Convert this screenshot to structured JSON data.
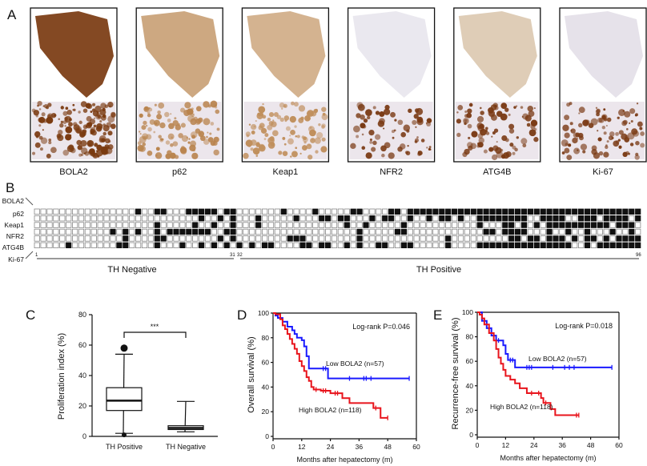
{
  "panel_labels": {
    "a": "A",
    "b": "B",
    "c": "C",
    "d": "D",
    "e": "E"
  },
  "panel_a": {
    "stains": [
      {
        "label": "BOLA2",
        "color": "#7a3a10",
        "density": 0.95
      },
      {
        "label": "p62",
        "color": "#b9844e",
        "density": 0.6
      },
      {
        "label": "Keap1",
        "color": "#c08f5c",
        "density": 0.55
      },
      {
        "label": "NFR2",
        "color": "#d6d2df",
        "density": 0.25
      },
      {
        "label": "ATG4B",
        "color": "#c9aa84",
        "density": 0.4
      },
      {
        "label": "Ki-67",
        "color": "#d7d0dd",
        "density": 0.45
      }
    ]
  },
  "panel_b": {
    "markers": [
      "BOLA2",
      "p62",
      "Keap1",
      "NFR2",
      "ATG4B",
      "Ki-67"
    ],
    "n_cases": 96,
    "rows_positive_cases": [
      [
        17,
        20,
        21,
        25,
        26,
        27,
        28,
        29,
        31,
        32,
        40,
        45,
        51,
        52,
        57,
        58,
        60,
        61,
        62,
        63,
        64,
        65,
        66,
        67,
        68,
        69,
        70,
        71,
        72,
        73,
        74,
        75,
        76,
        77,
        78,
        79,
        80,
        81,
        82,
        83,
        84,
        85,
        86,
        87,
        88,
        89,
        90,
        91,
        92,
        93,
        94,
        95,
        96
      ],
      [
        27,
        30,
        32,
        36,
        42,
        46,
        47,
        49,
        50,
        54,
        56,
        57,
        60,
        63,
        65,
        66,
        68,
        71,
        72,
        73,
        74,
        75,
        76,
        77,
        78,
        81,
        82,
        83,
        84,
        87,
        88,
        89,
        91,
        92,
        93,
        94,
        96
      ],
      [
        20,
        26,
        29,
        32,
        36,
        50,
        53,
        59,
        71,
        75,
        76,
        78,
        80,
        82,
        83,
        84,
        85,
        86,
        87,
        88,
        89,
        90,
        91,
        93,
        94,
        95
      ],
      [
        13,
        15,
        17,
        20,
        22,
        23,
        24,
        25,
        26,
        27,
        28,
        31,
        32,
        52,
        58,
        59,
        72,
        73,
        75,
        76,
        77,
        78,
        82,
        85,
        88,
        92,
        95
      ],
      [
        15,
        20,
        21,
        30,
        32,
        41,
        42,
        43,
        52,
        66,
        76,
        77,
        79,
        80,
        82,
        83,
        84,
        86,
        88,
        89,
        91,
        93,
        94,
        95,
        96
      ],
      [
        6,
        14,
        15,
        20,
        24,
        27,
        29,
        31,
        33,
        35,
        37,
        38,
        43,
        44,
        46,
        47,
        50,
        52,
        55,
        56,
        59,
        60,
        66,
        71,
        72,
        73,
        74,
        75,
        76,
        77,
        78,
        79,
        80,
        81,
        82,
        83,
        84,
        85,
        88,
        90,
        91,
        92,
        93,
        94,
        95,
        96
      ]
    ],
    "tick_labels": {
      "first": "1",
      "neg_end": "31",
      "pos_start": "32",
      "last": "96"
    },
    "group_labels": {
      "negative": "TH Negative",
      "positive": "TH Positive"
    }
  },
  "chart_data": [
    {
      "type": "box",
      "ylabel": "Proliferation index (%)",
      "ylim": [
        0,
        80
      ],
      "yticks": [
        "0",
        "20",
        "40",
        "60",
        "80"
      ],
      "categories": [
        "TH Positive",
        "TH Negative"
      ],
      "boxes": [
        {
          "whisker_low": 2,
          "q1": 17,
          "median": 23.5,
          "q3": 32,
          "whisker_high": 54,
          "outliers": [
            58,
            1
          ]
        },
        {
          "whisker_low": 3,
          "q1": 4.5,
          "median": 5.5,
          "q3": 7,
          "whisker_high": 23,
          "outliers": []
        }
      ],
      "significance": "***"
    },
    {
      "type": "line",
      "subtype": "kaplan-meier",
      "xlabel": "Months after hepatectomy (m)",
      "ylabel": "Overall survival (%)",
      "xlim": [
        0,
        60
      ],
      "ylim": [
        0,
        100
      ],
      "xticks": [
        "0",
        "12",
        "24",
        "36",
        "48",
        "60"
      ],
      "yticks": [
        "0",
        "20",
        "40",
        "60",
        "80",
        "100"
      ],
      "annotation": "Log-rank P=0.046",
      "series": [
        {
          "name": "Low BOLA2 (n=57)",
          "color": "#1a1aff",
          "steps": [
            [
              0,
              100
            ],
            [
              1,
              98
            ],
            [
              2,
              96
            ],
            [
              4,
              93
            ],
            [
              6,
              89
            ],
            [
              8,
              86
            ],
            [
              9,
              83
            ],
            [
              10,
              80
            ],
            [
              12,
              78
            ],
            [
              13,
              73
            ],
            [
              14,
              65
            ],
            [
              15,
              55
            ],
            [
              23,
              55
            ],
            [
              23,
              47
            ],
            [
              57,
              47
            ]
          ],
          "censored": [
            21,
            22,
            32,
            38,
            39,
            41,
            57
          ]
        },
        {
          "name": "High BOLA2 (n=118)",
          "color": "#e8141c",
          "steps": [
            [
              0,
              100
            ],
            [
              1,
              99
            ],
            [
              3,
              95
            ],
            [
              4,
              90
            ],
            [
              5,
              87
            ],
            [
              6,
              83
            ],
            [
              7,
              79
            ],
            [
              8,
              75
            ],
            [
              9,
              71
            ],
            [
              10,
              67
            ],
            [
              11,
              61
            ],
            [
              12,
              57
            ],
            [
              13,
              53
            ],
            [
              14,
              48
            ],
            [
              15,
              45
            ],
            [
              16,
              40
            ],
            [
              17,
              38
            ],
            [
              20,
              37
            ],
            [
              24,
              35
            ],
            [
              29,
              31
            ],
            [
              32,
              27
            ],
            [
              42,
              23
            ],
            [
              45,
              15
            ],
            [
              48,
              15
            ]
          ],
          "censored": [
            18,
            21,
            22,
            26,
            27,
            43,
            48
          ]
        }
      ]
    },
    {
      "type": "line",
      "subtype": "kaplan-meier",
      "xlabel": "Months after hepatectomy (m)",
      "ylabel": "Recurrence-free survival (%)",
      "xlim": [
        0,
        60
      ],
      "ylim": [
        0,
        100
      ],
      "xticks": [
        "0",
        "12",
        "24",
        "36",
        "48",
        "60"
      ],
      "yticks": [
        "0",
        "20",
        "40",
        "60",
        "80",
        "100"
      ],
      "annotation": "Log-rank P=0.018",
      "series": [
        {
          "name": "Low BOLA2 (n=57)",
          "color": "#1a1aff",
          "steps": [
            [
              0,
              100
            ],
            [
              2,
              93
            ],
            [
              4,
              87
            ],
            [
              6,
              81
            ],
            [
              8,
              77
            ],
            [
              11,
              73
            ],
            [
              12,
              66
            ],
            [
              13,
              61
            ],
            [
              16,
              55
            ],
            [
              57,
              55
            ]
          ],
          "censored": [
            5,
            7,
            9,
            14,
            15,
            21,
            22,
            23,
            32,
            37,
            39,
            41,
            57
          ]
        },
        {
          "name": "High BOLA2 (n=118)",
          "color": "#e8141c",
          "steps": [
            [
              0,
              100
            ],
            [
              1,
              98
            ],
            [
              2,
              95
            ],
            [
              3,
              90
            ],
            [
              5,
              83
            ],
            [
              7,
              77
            ],
            [
              8,
              70
            ],
            [
              9,
              63
            ],
            [
              10,
              58
            ],
            [
              11,
              53
            ],
            [
              12,
              48
            ],
            [
              14,
              45
            ],
            [
              16,
              42
            ],
            [
              18,
              38
            ],
            [
              21,
              34
            ],
            [
              27,
              30
            ],
            [
              28,
              26
            ],
            [
              31,
              21
            ],
            [
              33,
              16
            ],
            [
              43,
              16
            ]
          ],
          "censored": [
            23,
            26,
            29,
            42,
            43
          ]
        }
      ]
    }
  ]
}
